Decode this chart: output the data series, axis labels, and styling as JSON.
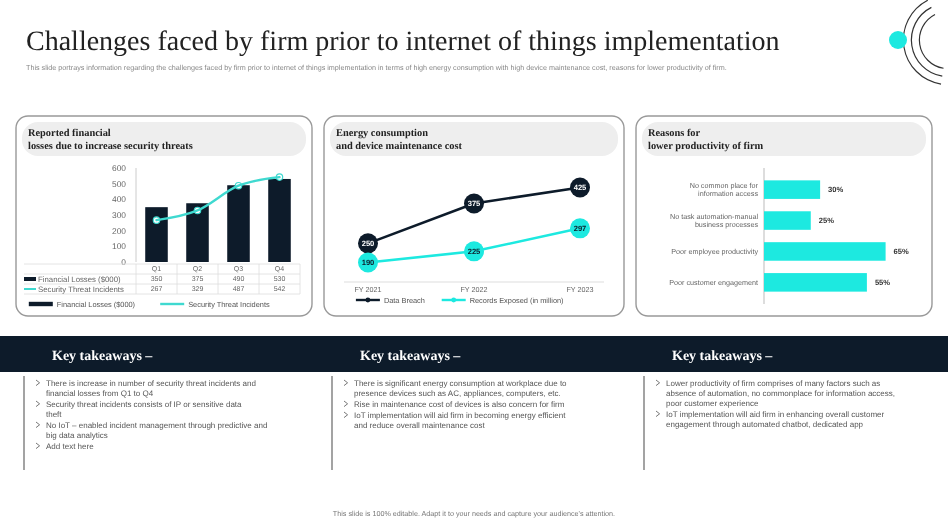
{
  "chart_data": [
    {
      "type": "bar",
      "title": "Reported financial\nlosses due to increase security threats",
      "categories": [
        "Q1",
        "Q2",
        "Q3",
        "Q4"
      ],
      "series": [
        {
          "name": "Financial Losses ($000)",
          "color": "#0d1b2a",
          "values": [
            350,
            375,
            490,
            530
          ]
        },
        {
          "name": "Security Threat Incidents",
          "type": "line",
          "color": "#3fd9d0",
          "values": [
            267,
            329,
            487,
            542
          ]
        }
      ],
      "ylim": [
        0,
        600
      ],
      "yticks": [
        0,
        100,
        200,
        300,
        400,
        500,
        600
      ],
      "data_labels": true,
      "legend": "bottom",
      "marker": "circle",
      "annotations": [
        "Challenges faced by firm prior to internet of things implementation",
        "This slide portrays information regarding the challenges faced by firm prior to internet of things implementation in terms of high energy consumption with high device maintenance cost, reasons for lower productivity of firm.",
        "This slide is 100% editable. Adapt it to your needs and capture your audience's attention.",
        "Key takeaways –",
        "There is increase in number of security threat incidents and financial losses from Q1 to Q4",
        "Security threat incidents consists of IP or sensitive data theft",
        "No IoT – enabled incident management through predictive and big data analytics",
        "Add text here"
      ]
    },
    {
      "type": "line",
      "title": "Energy consumption\nand device maintenance cost",
      "categories": [
        "FY 2021",
        "FY 2022",
        "FY 2023"
      ],
      "series": [
        {
          "name": "Data Breach",
          "color": "#0d1b2a",
          "values": [
            250,
            375,
            425
          ]
        },
        {
          "name": "Records Exposed (in million)",
          "color": "#1de9e0",
          "values": [
            190,
            225,
            297
          ]
        }
      ],
      "data_labels": true,
      "legend": "bottom",
      "marker": "circle",
      "annotations": [
        "Key takeaways –",
        "There is significant energy consumption at workplace due to presence devices such as AC, appliances, computers, etc.",
        "Rise in maintenance cost of devices is also concern for firm",
        "IoT implementation will aid firm in becoming energy efficient and reduce overall maintenance cost"
      ]
    },
    {
      "type": "bar",
      "orientation": "horizontal",
      "title": "Reasons for\nlower productivity of firm",
      "categories": [
        "No common place for information access",
        "No task automation-manual business processes",
        "Poor employee productivity",
        "Poor customer engagement"
      ],
      "values": [
        30,
        25,
        65,
        55
      ],
      "value_labels": [
        "30%",
        "25%",
        "65%",
        "55%"
      ],
      "color": "#1de9e0",
      "annotations": [
        "Key takeaways –",
        "Lower productivity of firm comprises of many factors such as absence of automation, no commonplace for information access, poor customer experience",
        "IoT implementation will aid firm in enhancing overall customer engagement through automated chatbot, dedicated app"
      ]
    }
  ]
}
